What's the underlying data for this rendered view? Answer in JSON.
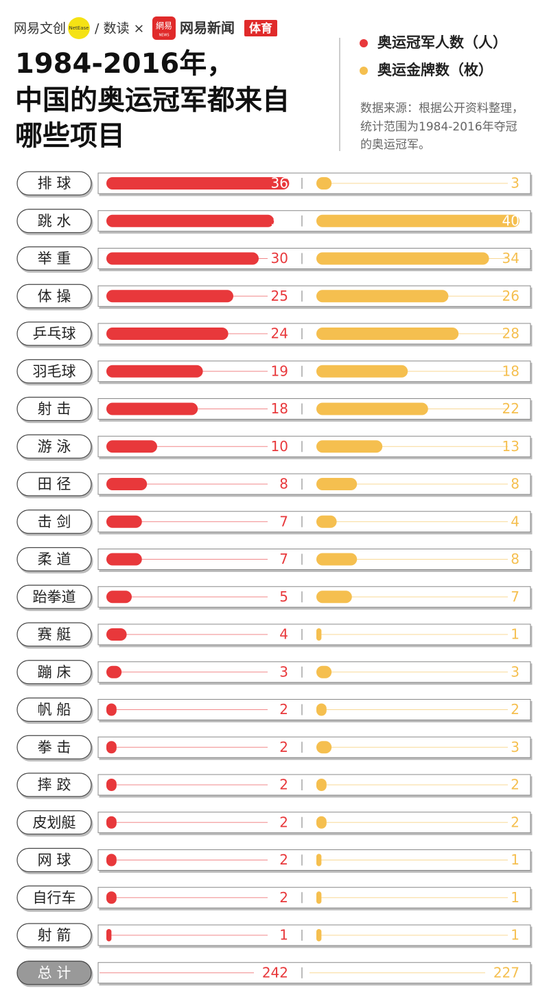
{
  "header": {
    "brand": "网易文创",
    "brand_en": "NetEase",
    "partner": "/ 数读 ×",
    "logo_cn": "網易",
    "logo_en": "NEWS",
    "news": "网易新闻",
    "section": "体育"
  },
  "chart_data": {
    "type": "bar",
    "title": [
      "1984-2016年，",
      "中国的奥运冠军都来自",
      "哪些项目"
    ],
    "source": [
      "数据来源：根据公开资料整理，",
      "统计范围为1984-2016年夺冠",
      "的奥运冠军。"
    ],
    "categories": [
      "排 球",
      "跳 水",
      "举 重",
      "体 操",
      "乒乓球",
      "羽毛球",
      "射 击",
      "游 泳",
      "田 径",
      "击 剑",
      "柔 道",
      "跆拳道",
      "赛 艇",
      "蹦 床",
      "帆 船",
      "拳 击",
      "摔 跤",
      "皮划艇",
      "网 球",
      "自行车",
      "射 箭"
    ],
    "series": [
      {
        "name": "奥运冠军人数（人）",
        "color": "#e8383b",
        "values": [
          36,
          33,
          30,
          25,
          24,
          19,
          18,
          10,
          8,
          7,
          7,
          5,
          4,
          3,
          2,
          2,
          2,
          2,
          2,
          2,
          1
        ],
        "total": 242
      },
      {
        "name": "奥运金牌数（枚）",
        "color": "#f5bf4f",
        "values": [
          3,
          40,
          34,
          26,
          28,
          18,
          22,
          13,
          8,
          4,
          8,
          7,
          1,
          3,
          2,
          3,
          2,
          2,
          1,
          1,
          1
        ],
        "total": 227
      }
    ],
    "total_label": "总 计",
    "xlim": [
      0,
      40
    ]
  }
}
